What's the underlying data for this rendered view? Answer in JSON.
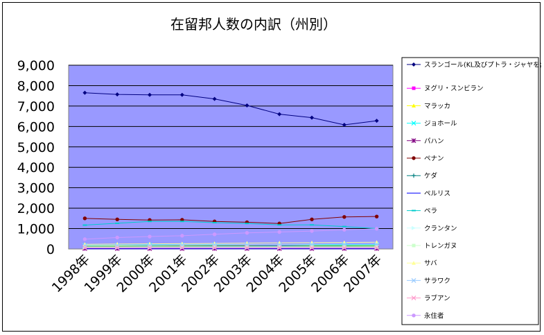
{
  "chart_data": {
    "type": "line",
    "title": "在留邦人数の内訳（州別）",
    "xlabel": "",
    "ylabel": "",
    "ylim": [
      0,
      9000
    ],
    "yticks": [
      "0",
      "1,000",
      "2,000",
      "3,000",
      "4,000",
      "5,000",
      "6,000",
      "7,000",
      "8,000",
      "9,000"
    ],
    "categories": [
      "1998年",
      "1999年",
      "2000年",
      "2001年",
      "2002年",
      "2003年",
      "2004年",
      "2005年",
      "2006年",
      "2007年"
    ],
    "grid": true,
    "legend_position": "right",
    "plot_background": "#9999ff",
    "series": [
      {
        "name": "スランゴール(KL及びプトラ・ジャヤを含む)",
        "color": "#000080",
        "marker": "diamond",
        "values": [
          7650,
          7570,
          7550,
          7550,
          7350,
          7030,
          6600,
          6430,
          6080,
          6280
        ]
      },
      {
        "name": "ヌグリ・スンビラン",
        "color": "#ff00ff",
        "marker": "square",
        "values": [
          30,
          30,
          30,
          30,
          30,
          30,
          30,
          30,
          30,
          30
        ]
      },
      {
        "name": "マラッカ",
        "color": "#ffff00",
        "marker": "triangle",
        "values": [
          150,
          150,
          150,
          160,
          160,
          160,
          150,
          160,
          160,
          160
        ]
      },
      {
        "name": "ジョホール",
        "color": "#00ffff",
        "marker": "x",
        "values": [
          180,
          190,
          200,
          210,
          220,
          220,
          220,
          210,
          200,
          200
        ]
      },
      {
        "name": "パハン",
        "color": "#800080",
        "marker": "star",
        "values": [
          20,
          20,
          20,
          20,
          20,
          20,
          20,
          20,
          20,
          20
        ]
      },
      {
        "name": "ペナン",
        "color": "#800000",
        "marker": "circle",
        "values": [
          1500,
          1450,
          1420,
          1430,
          1350,
          1310,
          1250,
          1450,
          1570,
          1590
        ]
      },
      {
        "name": "ケダ",
        "color": "#008080",
        "marker": "plus",
        "values": [
          120,
          120,
          130,
          140,
          150,
          150,
          150,
          140,
          140,
          130
        ]
      },
      {
        "name": "ペルリス",
        "color": "#0000ff",
        "marker": "none",
        "values": [
          10,
          10,
          10,
          10,
          10,
          10,
          10,
          10,
          10,
          10
        ]
      },
      {
        "name": "ペラ",
        "color": "#00cccc",
        "marker": "dash",
        "values": [
          1170,
          1260,
          1350,
          1350,
          1290,
          1250,
          1180,
          1180,
          1100,
          1000
        ]
      },
      {
        "name": "クランタン",
        "color": "#ccffff",
        "marker": "arrow",
        "values": [
          60,
          60,
          60,
          60,
          60,
          60,
          60,
          60,
          60,
          60
        ]
      },
      {
        "name": "トレンガヌ",
        "color": "#ccffcc",
        "marker": "square",
        "values": [
          100,
          100,
          110,
          110,
          110,
          110,
          110,
          110,
          110,
          110
        ]
      },
      {
        "name": "サバ",
        "color": "#ffff99",
        "marker": "triangle",
        "values": [
          230,
          240,
          250,
          260,
          270,
          290,
          300,
          310,
          320,
          330
        ]
      },
      {
        "name": "サラワク",
        "color": "#99ccff",
        "marker": "x",
        "values": [
          170,
          180,
          180,
          200,
          210,
          220,
          220,
          230,
          240,
          240
        ]
      },
      {
        "name": "ラブアン",
        "color": "#ff99cc",
        "marker": "x",
        "values": [
          60,
          60,
          60,
          60,
          60,
          60,
          60,
          60,
          60,
          60
        ]
      },
      {
        "name": "永住者",
        "color": "#cc99ff",
        "marker": "circle",
        "values": [
          480,
          560,
          610,
          650,
          720,
          790,
          830,
          880,
          940,
          990
        ]
      }
    ]
  }
}
